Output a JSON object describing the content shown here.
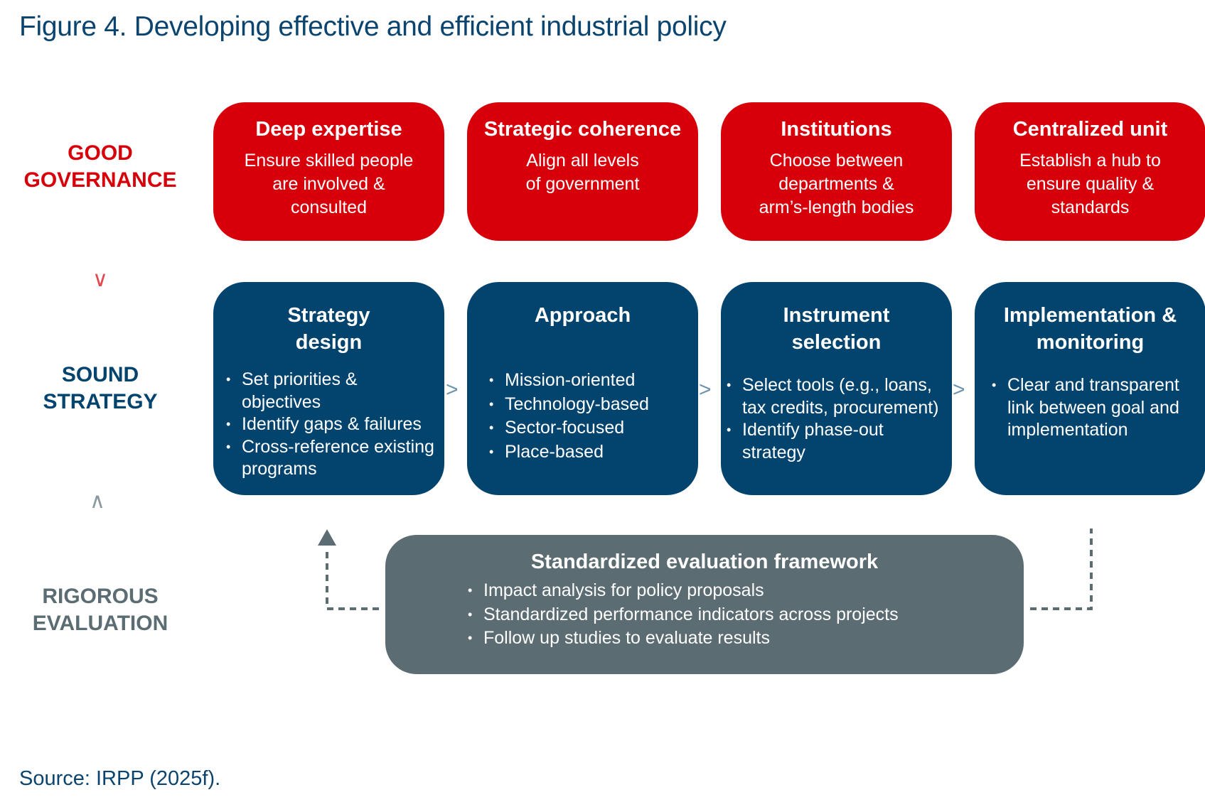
{
  "title": "Figure 4. Developing effective and efficient industrial policy",
  "row_labels": {
    "governance": [
      "GOOD",
      "GOVERNANCE"
    ],
    "strategy": [
      "SOUND",
      "STRATEGY"
    ],
    "evaluation": [
      "RIGOROUS",
      "EVALUATION"
    ]
  },
  "colors": {
    "red": "#d7000a",
    "navy": "#03446f",
    "gray": "#5b6c73",
    "title": "#0b446f"
  },
  "governance_boxes": [
    {
      "title": "Deep expertise",
      "lines": [
        "Ensure skilled people",
        "are involved &",
        "consulted"
      ]
    },
    {
      "title": "Strategic coherence",
      "lines": [
        "Align all levels",
        "of government"
      ]
    },
    {
      "title": "Institutions",
      "lines": [
        "Choose between",
        "departments &",
        "arm’s-length bodies"
      ]
    },
    {
      "title": "Centralized unit",
      "lines": [
        "Establish a hub to",
        "ensure quality &",
        "standards"
      ]
    }
  ],
  "strategy_boxes": [
    {
      "title": [
        "Strategy",
        "design"
      ],
      "bullets": [
        "Set priorities & objectives",
        "Identify gaps & failures",
        "Cross-reference existing programs"
      ]
    },
    {
      "title": [
        "Approach",
        ""
      ],
      "bullets": [
        "Mission-oriented",
        "Technology-based",
        "Sector-focused",
        "Place-based"
      ]
    },
    {
      "title": [
        "Instrument",
        "selection"
      ],
      "bullets": [
        "Select tools (e.g., loans, tax credits, procurement)",
        "Identify phase-out strategy"
      ]
    },
    {
      "title": [
        "Implementation &",
        "monitoring"
      ],
      "bullets": [
        "Clear and transparent link between goal and implementation"
      ]
    }
  ],
  "evaluation_box": {
    "title": "Standardized evaluation framework",
    "bullets": [
      "Impact analysis for policy proposals",
      "Standardized performance indicators across projects",
      "Follow up studies to evaluate results"
    ]
  },
  "source": "Source: IRPP (2025f)."
}
